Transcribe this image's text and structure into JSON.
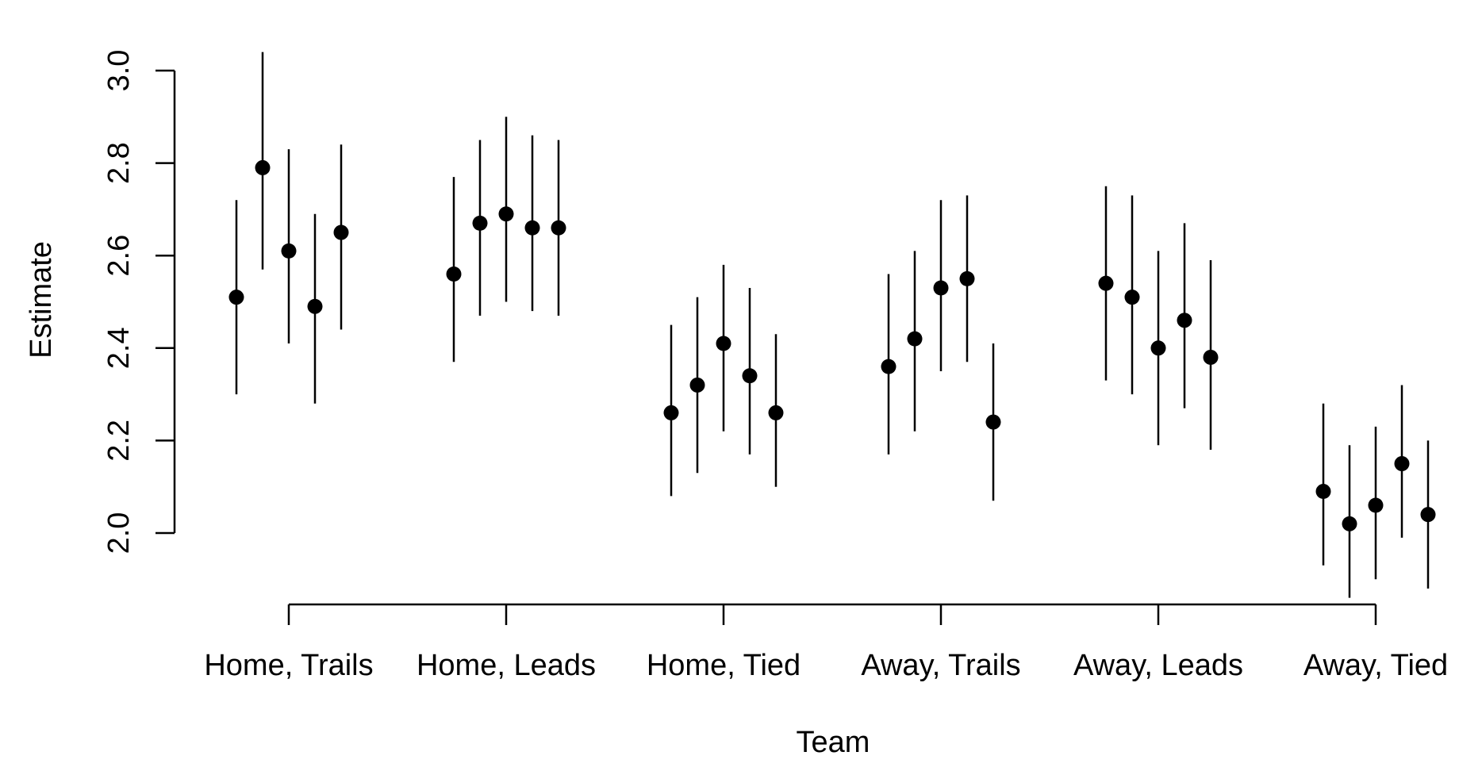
{
  "chart_data": {
    "type": "scatter",
    "subtype": "point-with-error-bars",
    "xlabel": "Team",
    "ylabel": "Estimate",
    "categories": [
      "Home, Trails",
      "Home, Leads",
      "Home, Tied",
      "Away, Trails",
      "Away, Leads",
      "Away, Tied"
    ],
    "yticks": [
      "2.0",
      "2.2",
      "2.4",
      "2.6",
      "2.8",
      "3.0"
    ],
    "ylim": [
      2.0,
      3.0
    ],
    "grid": false,
    "groups": [
      {
        "category": "Home, Trails",
        "points": [
          {
            "estimate": 2.51,
            "lower": 2.3,
            "upper": 2.72
          },
          {
            "estimate": 2.79,
            "lower": 2.57,
            "upper": 3.04
          },
          {
            "estimate": 2.61,
            "lower": 2.41,
            "upper": 2.83
          },
          {
            "estimate": 2.49,
            "lower": 2.28,
            "upper": 2.69
          },
          {
            "estimate": 2.65,
            "lower": 2.44,
            "upper": 2.84
          }
        ]
      },
      {
        "category": "Home, Leads",
        "points": [
          {
            "estimate": 2.56,
            "lower": 2.37,
            "upper": 2.77
          },
          {
            "estimate": 2.67,
            "lower": 2.47,
            "upper": 2.85
          },
          {
            "estimate": 2.69,
            "lower": 2.5,
            "upper": 2.9
          },
          {
            "estimate": 2.66,
            "lower": 2.48,
            "upper": 2.86
          },
          {
            "estimate": 2.66,
            "lower": 2.47,
            "upper": 2.85
          }
        ]
      },
      {
        "category": "Home, Tied",
        "points": [
          {
            "estimate": 2.26,
            "lower": 2.08,
            "upper": 2.45
          },
          {
            "estimate": 2.32,
            "lower": 2.13,
            "upper": 2.51
          },
          {
            "estimate": 2.41,
            "lower": 2.22,
            "upper": 2.58
          },
          {
            "estimate": 2.34,
            "lower": 2.17,
            "upper": 2.53
          },
          {
            "estimate": 2.26,
            "lower": 2.1,
            "upper": 2.43
          }
        ]
      },
      {
        "category": "Away, Trails",
        "points": [
          {
            "estimate": 2.36,
            "lower": 2.17,
            "upper": 2.56
          },
          {
            "estimate": 2.42,
            "lower": 2.22,
            "upper": 2.61
          },
          {
            "estimate": 2.53,
            "lower": 2.35,
            "upper": 2.72
          },
          {
            "estimate": 2.55,
            "lower": 2.37,
            "upper": 2.73
          },
          {
            "estimate": 2.24,
            "lower": 2.07,
            "upper": 2.41
          }
        ]
      },
      {
        "category": "Away, Leads",
        "points": [
          {
            "estimate": 2.54,
            "lower": 2.33,
            "upper": 2.75
          },
          {
            "estimate": 2.51,
            "lower": 2.3,
            "upper": 2.73
          },
          {
            "estimate": 2.4,
            "lower": 2.19,
            "upper": 2.61
          },
          {
            "estimate": 2.46,
            "lower": 2.27,
            "upper": 2.67
          },
          {
            "estimate": 2.38,
            "lower": 2.18,
            "upper": 2.59
          }
        ]
      },
      {
        "category": "Away, Tied",
        "points": [
          {
            "estimate": 2.09,
            "lower": 1.93,
            "upper": 2.28
          },
          {
            "estimate": 2.02,
            "lower": 1.86,
            "upper": 2.19
          },
          {
            "estimate": 2.06,
            "lower": 1.9,
            "upper": 2.23
          },
          {
            "estimate": 2.15,
            "lower": 1.99,
            "upper": 2.32
          },
          {
            "estimate": 2.04,
            "lower": 1.88,
            "upper": 2.2
          }
        ]
      }
    ],
    "colors": {
      "points": "#000000",
      "errorbars": "#000000",
      "axes": "#000000"
    }
  }
}
